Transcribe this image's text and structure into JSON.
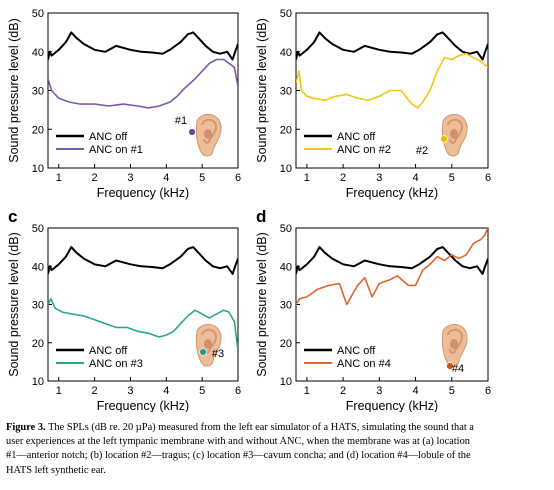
{
  "colors": {
    "anc_off": "#000000",
    "ear_skin": "#ecbd96",
    "ear_shadow": "#d39772"
  },
  "chart_data": [
    {
      "type": "line",
      "panel": "a",
      "panel_label": "",
      "marker_label": "#1",
      "marker_color": "#6b4c9a",
      "xlabel": "Frequency (kHz)",
      "ylabel": "Sound pressure level (dB)",
      "xlim": [
        0.7,
        6.0
      ],
      "ylim": [
        10,
        50
      ],
      "xticks": [
        1,
        2,
        3,
        4,
        5,
        6
      ],
      "yticks": [
        10,
        20,
        30,
        40,
        50
      ],
      "legend_position": "bottom-left",
      "series": [
        {
          "name": "ANC off",
          "color": "#000000",
          "x": [
            0.7,
            0.75,
            0.8,
            1.0,
            1.2,
            1.35,
            1.5,
            1.7,
            2.0,
            2.3,
            2.6,
            3.0,
            3.3,
            3.6,
            3.9,
            4.1,
            4.4,
            4.6,
            4.75,
            4.9,
            5.1,
            5.3,
            5.5,
            5.7,
            5.85,
            5.92,
            6.0
          ],
          "y": [
            38,
            40,
            39,
            40.5,
            42.5,
            45,
            43.5,
            42,
            40.5,
            40,
            41.5,
            40.5,
            40,
            39.8,
            39.5,
            40.5,
            42.5,
            44.5,
            45,
            43.5,
            41.5,
            40,
            39.5,
            40,
            38,
            40,
            42
          ]
        },
        {
          "name": "ANC on #1",
          "color": "#7c58ae",
          "x": [
            0.7,
            0.8,
            1.0,
            1.3,
            1.6,
            2.0,
            2.4,
            2.8,
            3.2,
            3.5,
            3.8,
            4.1,
            4.3,
            4.5,
            4.8,
            5.0,
            5.2,
            5.4,
            5.6,
            5.75,
            5.9,
            6.0
          ],
          "y": [
            33,
            30,
            28,
            27,
            26.5,
            26.5,
            26,
            26.5,
            26,
            25.5,
            26,
            27,
            28.5,
            30.5,
            33,
            35,
            37,
            38,
            38,
            37,
            36,
            31
          ]
        }
      ]
    },
    {
      "type": "line",
      "panel": "b",
      "panel_label": "",
      "marker_label": "#2",
      "marker_color": "#e8c000",
      "xlabel": "Frequency (kHz)",
      "ylabel": "Sound pressure level (dB)",
      "xlim": [
        0.7,
        6.0
      ],
      "ylim": [
        10,
        50
      ],
      "xticks": [
        1,
        2,
        3,
        4,
        5,
        6
      ],
      "yticks": [
        10,
        20,
        30,
        40,
        50
      ],
      "legend_position": "bottom-left",
      "series": [
        {
          "name": "ANC off",
          "color": "#000000",
          "x": [
            0.7,
            0.75,
            0.8,
            1.0,
            1.2,
            1.35,
            1.5,
            1.7,
            2.0,
            2.3,
            2.6,
            3.0,
            3.3,
            3.6,
            3.9,
            4.1,
            4.4,
            4.6,
            4.75,
            4.9,
            5.1,
            5.3,
            5.5,
            5.7,
            5.85,
            5.92,
            6.0
          ],
          "y": [
            38,
            40,
            39,
            40.5,
            42.5,
            45,
            43.5,
            42,
            40.5,
            40,
            41.5,
            40.5,
            40,
            39.8,
            39.5,
            40.5,
            42.5,
            44.5,
            45,
            43.5,
            41.5,
            40,
            39.5,
            40,
            38,
            40,
            42
          ]
        },
        {
          "name": "ANC on #2",
          "color": "#f2c70f",
          "x": [
            0.7,
            0.78,
            0.85,
            1.0,
            1.2,
            1.5,
            1.8,
            2.1,
            2.4,
            2.7,
            3.0,
            3.3,
            3.6,
            3.9,
            4.05,
            4.2,
            4.4,
            4.6,
            4.8,
            5.0,
            5.2,
            5.4,
            5.6,
            5.8,
            6.0
          ],
          "y": [
            32,
            35,
            30,
            28.5,
            28,
            27.5,
            28.5,
            29,
            28,
            27.5,
            28.5,
            30,
            30,
            26.5,
            25.5,
            27,
            30,
            35,
            38.5,
            38,
            39,
            39.5,
            38.5,
            37.5,
            36
          ]
        }
      ]
    },
    {
      "type": "line",
      "panel": "c",
      "panel_label": "c",
      "marker_label": "#3",
      "marker_color": "#1e9f84",
      "xlabel": "Frequency (kHz)",
      "ylabel": "Sound pressure level (dB)",
      "xlim": [
        0.7,
        6.0
      ],
      "ylim": [
        10,
        50
      ],
      "xticks": [
        1,
        2,
        3,
        4,
        5,
        6
      ],
      "yticks": [
        10,
        20,
        30,
        40,
        50
      ],
      "legend_position": "bottom-left",
      "series": [
        {
          "name": "ANC off",
          "color": "#000000",
          "x": [
            0.7,
            0.75,
            0.8,
            1.0,
            1.2,
            1.35,
            1.5,
            1.7,
            2.0,
            2.3,
            2.6,
            3.0,
            3.3,
            3.6,
            3.9,
            4.1,
            4.4,
            4.6,
            4.75,
            4.9,
            5.1,
            5.3,
            5.5,
            5.7,
            5.85,
            5.92,
            6.0
          ],
          "y": [
            38,
            40,
            39,
            40.5,
            42.5,
            45,
            43.5,
            42,
            40.5,
            40,
            41.5,
            40.5,
            40,
            39.8,
            39.5,
            40.5,
            42.5,
            44.5,
            45,
            43.5,
            41.5,
            40,
            39.5,
            40,
            38,
            40,
            42
          ]
        },
        {
          "name": "ANC on #3",
          "color": "#27a88a",
          "x": [
            0.7,
            0.78,
            0.9,
            1.1,
            1.4,
            1.7,
            2.0,
            2.3,
            2.6,
            2.9,
            3.2,
            3.5,
            3.8,
            4.0,
            4.2,
            4.4,
            4.6,
            4.8,
            5.0,
            5.2,
            5.4,
            5.6,
            5.75,
            5.9,
            6.0
          ],
          "y": [
            30,
            31.5,
            29,
            28,
            27.5,
            27,
            26,
            25,
            24,
            24,
            23,
            22.5,
            21.5,
            22,
            23,
            25,
            27,
            28.5,
            27.5,
            26.5,
            27.5,
            28.5,
            28,
            25.5,
            18
          ]
        }
      ]
    },
    {
      "type": "line",
      "panel": "d",
      "panel_label": "d",
      "marker_label": "#4",
      "marker_color": "#c9531c",
      "xlabel": "Frequency (kHz)",
      "ylabel": "Sound pressure level (dB)",
      "xlim": [
        0.7,
        6.0
      ],
      "ylim": [
        10,
        50
      ],
      "xticks": [
        1,
        2,
        3,
        4,
        5,
        6
      ],
      "yticks": [
        10,
        20,
        30,
        40,
        50
      ],
      "legend_position": "bottom-left",
      "series": [
        {
          "name": "ANC off",
          "color": "#000000",
          "x": [
            0.7,
            0.75,
            0.8,
            1.0,
            1.2,
            1.35,
            1.5,
            1.7,
            2.0,
            2.3,
            2.6,
            3.0,
            3.3,
            3.6,
            3.9,
            4.1,
            4.4,
            4.6,
            4.75,
            4.9,
            5.1,
            5.3,
            5.5,
            5.7,
            5.85,
            5.92,
            6.0
          ],
          "y": [
            38,
            40,
            39,
            40.5,
            42.5,
            45,
            43.5,
            42,
            40.5,
            40,
            41.5,
            40.5,
            40,
            39.8,
            39.5,
            40.5,
            42.5,
            44.5,
            45,
            43.5,
            41.5,
            40,
            39.5,
            40,
            38,
            40,
            42
          ]
        },
        {
          "name": "ANC on #4",
          "color": "#e0662d",
          "x": [
            0.7,
            0.8,
            1.0,
            1.3,
            1.6,
            1.9,
            2.1,
            2.4,
            2.6,
            2.8,
            3.0,
            3.3,
            3.5,
            3.8,
            4.0,
            4.2,
            4.4,
            4.6,
            4.8,
            5.0,
            5.2,
            5.4,
            5.6,
            5.8,
            5.9,
            6.0
          ],
          "y": [
            30,
            31.5,
            32,
            34,
            35,
            35.5,
            30,
            35,
            37,
            32,
            35.5,
            36.5,
            37.5,
            35,
            35,
            39,
            40.5,
            42.5,
            41.5,
            43,
            42,
            43,
            46,
            47,
            48,
            50
          ]
        }
      ]
    }
  ],
  "caption": {
    "label": "Figure 3.",
    "lines": [
      "The SPLs (dB re. 20 µPa) measured from the left ear simulator of a HATS, simulating the sound that a",
      "user experiences at the left tympanic membrane with and without ANC, when the membrane was at (a) location",
      "#1—anterior notch; (b) location #2—tragus; (c) location #3—cavum concha; and (d) location #4—lobule of the",
      "HATS left synthetic ear."
    ]
  }
}
